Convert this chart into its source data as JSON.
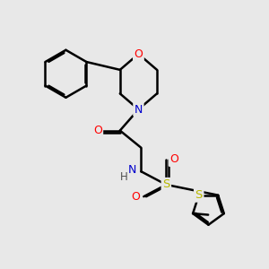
{
  "bg_color": "#e8e8e8",
  "bond_color": "#000000",
  "bond_width": 1.8,
  "atom_colors": {
    "O": "#ff0000",
    "N": "#0000cc",
    "S": "#b8b800",
    "H": "#505050",
    "C": "#000000"
  },
  "figsize": [
    3.0,
    3.0
  ],
  "dpi": 100
}
